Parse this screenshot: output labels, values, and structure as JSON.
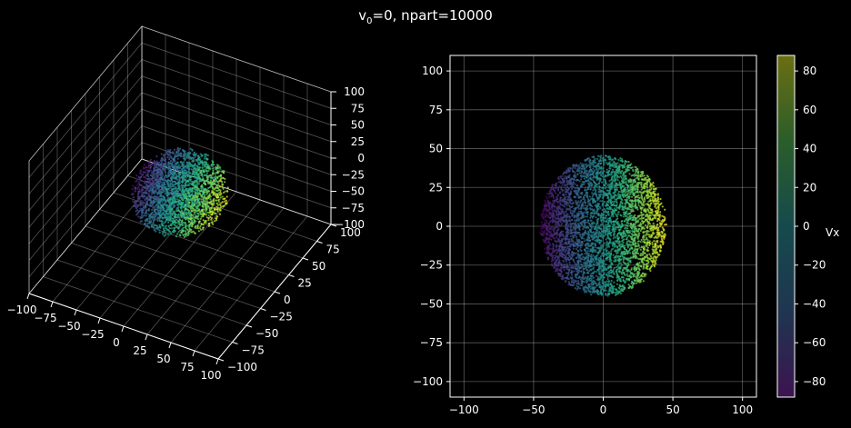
{
  "figure": {
    "title_prefix": "v",
    "title_sub": "0",
    "title_rest": "=0, npart=10000"
  },
  "chart_data": [
    {
      "type": "scatter",
      "projection": "3d",
      "title": "",
      "x_ticks": [
        -100,
        -75,
        -50,
        -25,
        0,
        25,
        50,
        75,
        100
      ],
      "y_ticks": [
        -100,
        -75,
        -50,
        -25,
        0,
        25,
        50,
        75,
        100
      ],
      "z_ticks": [
        -100,
        -75,
        -50,
        -25,
        0,
        25,
        50,
        75,
        100
      ],
      "xlim": [
        -100,
        100
      ],
      "ylim": [
        -100,
        100
      ],
      "zlim": [
        -100,
        100
      ],
      "grid": true,
      "points": {
        "count": 10000,
        "shape": "sphere",
        "center": [
          0,
          0,
          0
        ],
        "radius": 45,
        "color_by": "Vx"
      }
    },
    {
      "type": "scatter",
      "title": "",
      "x_ticks": [
        -100,
        -50,
        0,
        50,
        100
      ],
      "y_ticks": [
        -100,
        -75,
        -50,
        -25,
        0,
        25,
        50,
        75,
        100
      ],
      "xlim": [
        -110,
        110
      ],
      "ylim": [
        -110,
        110
      ],
      "grid": true,
      "points": {
        "count": 10000,
        "shape": "disk",
        "center": [
          0,
          0
        ],
        "radius": 45,
        "color_by": "Vx"
      },
      "colorbar": {
        "label": "Vx",
        "range": [
          -88,
          88
        ],
        "ticks": [
          -80,
          -60,
          -40,
          -20,
          0,
          20,
          40,
          60,
          80
        ],
        "colormap": "viridis"
      }
    }
  ]
}
